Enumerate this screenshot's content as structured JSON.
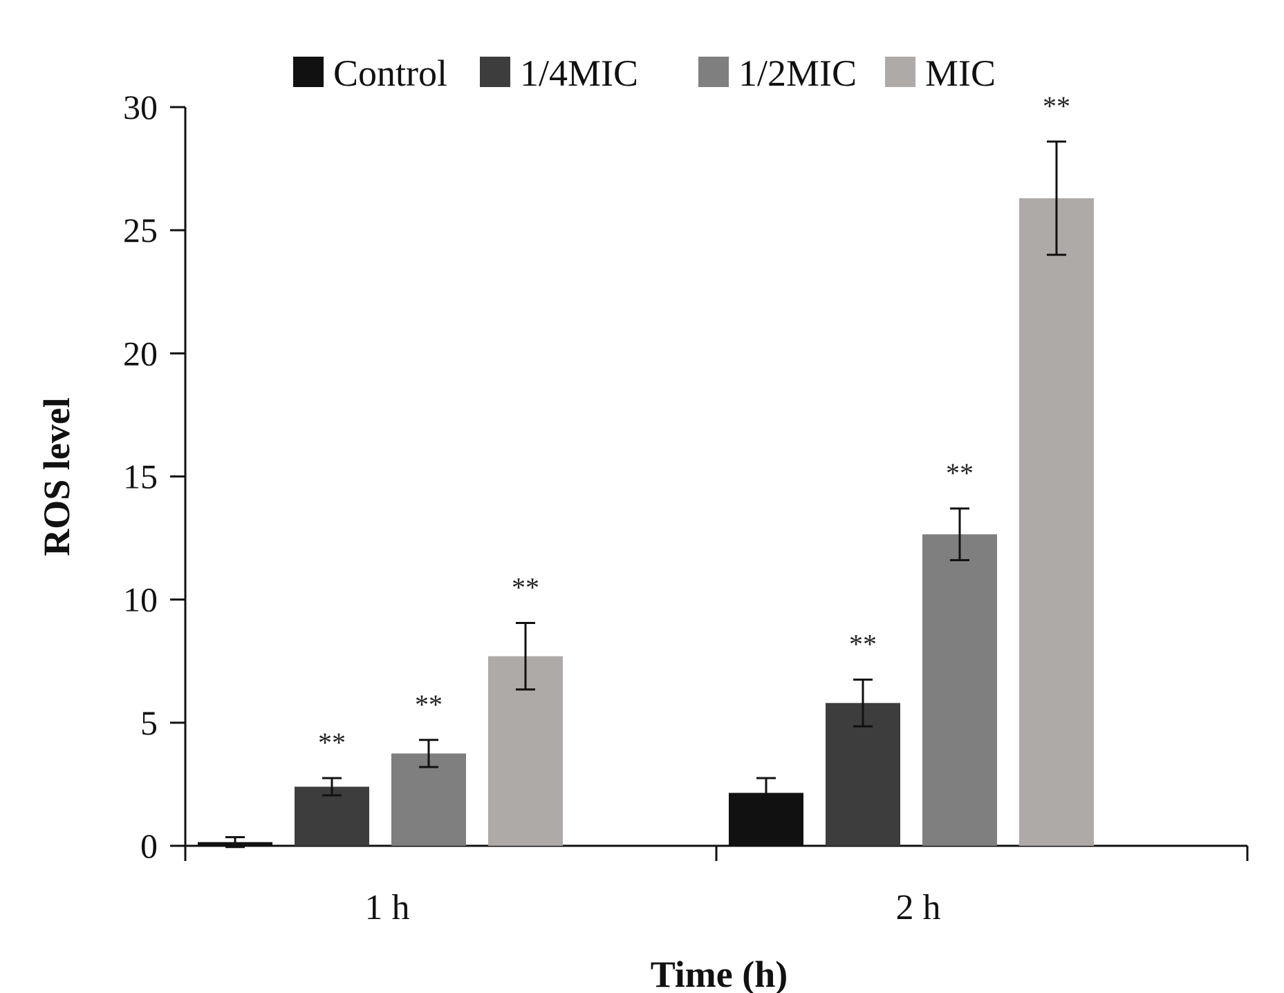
{
  "chart_data": {
    "type": "bar",
    "xlabel": "Time (h)",
    "ylabel": "ROS level",
    "ylim": [
      0,
      30
    ],
    "yticks": [
      0,
      5,
      10,
      15,
      20,
      25,
      30
    ],
    "categories": [
      "1 h",
      "2 h"
    ],
    "legend_position": "top-center",
    "grid": false,
    "series": [
      {
        "name": "Control",
        "color": "#111111",
        "values": [
          0.15,
          2.15
        ],
        "errors": [
          0.2,
          0.6
        ],
        "annotations": [
          "",
          ""
        ]
      },
      {
        "name": "1/4MIC",
        "color": "#3d3d3d",
        "values": [
          2.4,
          5.8
        ],
        "errors": [
          0.35,
          0.95
        ],
        "annotations": [
          "**",
          "**"
        ]
      },
      {
        "name": "1/2MIC",
        "color": "#7f7f7f",
        "values": [
          3.75,
          12.65
        ],
        "errors": [
          0.55,
          1.05
        ],
        "annotations": [
          "**",
          "**"
        ]
      },
      {
        "name": "MIC",
        "color": "#aeaaa8",
        "values": [
          7.7,
          26.3
        ],
        "errors": [
          1.35,
          2.3
        ],
        "annotations": [
          "**",
          "**"
        ]
      }
    ]
  }
}
